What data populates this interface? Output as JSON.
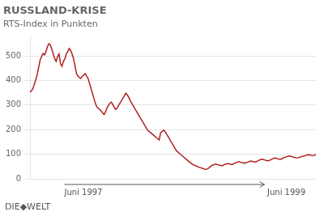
{
  "chart_data": {
    "type": "line",
    "title": "RUSSLAND-KRISE",
    "subtitle": "RTS-Index in Punkten",
    "annotations": [
      "Juni 1997",
      "Juni 1999"
    ],
    "source": "DIE◆WELT",
    "color": "#b22020",
    "ylim": [
      0,
      580
    ],
    "yticks": [
      0,
      100,
      200,
      300,
      400,
      500
    ],
    "grid": true,
    "tick_labels": "y",
    "categories": [
      null,
      null,
      null,
      null,
      null,
      null,
      null,
      null,
      null,
      null,
      null,
      null,
      null,
      null,
      null,
      null,
      null,
      null,
      null,
      null,
      null,
      null,
      null,
      null,
      null,
      null,
      null,
      null,
      null,
      null,
      null,
      null,
      null,
      null,
      null,
      null,
      null,
      null,
      null,
      null,
      null,
      null,
      null,
      null,
      null,
      null,
      null,
      null,
      null,
      null,
      null,
      null,
      null,
      null,
      null,
      null,
      null,
      null,
      null,
      null,
      null,
      null,
      null,
      null,
      null,
      null,
      null,
      null,
      null,
      null,
      null,
      null,
      null,
      null,
      null,
      null,
      null,
      null,
      null,
      null,
      null,
      null,
      null,
      null,
      null,
      null,
      null,
      null,
      null,
      null,
      null,
      null,
      null,
      null,
      null,
      null,
      null,
      null,
      null,
      null,
      null,
      null,
      null,
      null,
      null,
      null,
      null,
      null,
      null,
      null,
      null,
      null,
      null,
      null,
      null,
      null,
      null,
      null,
      null,
      null,
      null,
      null,
      null,
      null,
      null,
      null,
      null,
      null,
      null,
      null,
      null,
      null,
      null,
      null,
      null,
      null,
      null,
      null,
      null,
      null,
      null,
      null,
      null,
      null,
      null,
      null,
      null,
      null,
      null,
      null,
      null,
      null,
      null,
      null,
      null,
      null,
      null,
      null,
      null,
      null,
      null,
      null,
      null,
      null,
      null,
      null,
      null,
      null,
      null,
      null,
      null,
      null,
      null,
      null,
      null,
      null,
      null,
      null,
      null,
      null,
      null,
      null,
      null,
      null,
      null,
      null,
      null,
      null,
      null,
      null,
      null,
      null,
      null,
      null,
      null,
      null,
      null,
      null
    ],
    "values": [
      352,
      358,
      368,
      385,
      405,
      425,
      455,
      485,
      498,
      510,
      504,
      518,
      538,
      550,
      544,
      528,
      508,
      488,
      478,
      498,
      508,
      468,
      458,
      478,
      488,
      508,
      518,
      530,
      522,
      508,
      488,
      458,
      428,
      418,
      412,
      408,
      418,
      422,
      428,
      418,
      408,
      388,
      368,
      348,
      328,
      308,
      292,
      288,
      282,
      276,
      268,
      262,
      272,
      288,
      298,
      308,
      312,
      302,
      292,
      282,
      288,
      298,
      308,
      318,
      328,
      338,
      348,
      342,
      332,
      318,
      308,
      298,
      288,
      278,
      268,
      258,
      248,
      238,
      228,
      218,
      208,
      198,
      193,
      188,
      183,
      178,
      173,
      168,
      163,
      158,
      188,
      192,
      198,
      193,
      183,
      173,
      163,
      153,
      143,
      133,
      123,
      113,
      108,
      103,
      98,
      93,
      88,
      83,
      78,
      73,
      68,
      63,
      58,
      56,
      53,
      51,
      48,
      46,
      44,
      42,
      40,
      38,
      40,
      43,
      48,
      53,
      56,
      58,
      60,
      58,
      56,
      55,
      53,
      55,
      58,
      60,
      62,
      61,
      60,
      58,
      60,
      63,
      66,
      68,
      70,
      68,
      66,
      65,
      63,
      66,
      68,
      70,
      72,
      71,
      70,
      68,
      70,
      73,
      76,
      78,
      80,
      78,
      76,
      74,
      73,
      75,
      78,
      81,
      83,
      85,
      83,
      81,
      78,
      80,
      83,
      86,
      88,
      90,
      92,
      93,
      91,
      89,
      88,
      86,
      85,
      86,
      88,
      90,
      92,
      93,
      95,
      97,
      98,
      97,
      95,
      94,
      96,
      100
    ]
  }
}
